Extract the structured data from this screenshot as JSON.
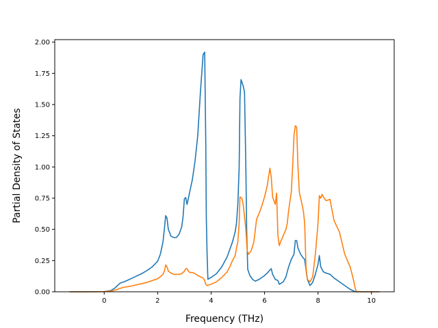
{
  "chart_data": {
    "type": "line",
    "xlabel": "Frequency (THz)",
    "ylabel": "Partial Density of States",
    "xlim": [
      -1.85,
      10.85
    ],
    "ylim": [
      0,
      2.02
    ],
    "xticks": [
      0,
      2,
      4,
      6,
      8,
      10
    ],
    "yticks": [
      0.0,
      0.25,
      0.5,
      0.75,
      1.0,
      1.25,
      1.5,
      1.75,
      2.0
    ],
    "xtick_labels": [
      "0",
      "2",
      "4",
      "6",
      "8",
      "10"
    ],
    "ytick_labels": [
      "0.00",
      "0.25",
      "0.50",
      "0.75",
      "1.00",
      "1.25",
      "1.50",
      "1.75",
      "2.00"
    ],
    "grid": false,
    "series": [
      {
        "color": "#1f77b4",
        "points": [
          [
            -1.3,
            0
          ],
          [
            -0.5,
            0
          ],
          [
            0,
            0.002
          ],
          [
            0.25,
            0.01
          ],
          [
            0.4,
            0.03
          ],
          [
            0.6,
            0.07
          ],
          [
            0.8,
            0.085
          ],
          [
            1.0,
            0.105
          ],
          [
            1.2,
            0.125
          ],
          [
            1.4,
            0.145
          ],
          [
            1.6,
            0.17
          ],
          [
            1.8,
            0.2
          ],
          [
            2.0,
            0.245
          ],
          [
            2.1,
            0.3
          ],
          [
            2.2,
            0.4
          ],
          [
            2.25,
            0.5
          ],
          [
            2.3,
            0.61
          ],
          [
            2.35,
            0.59
          ],
          [
            2.4,
            0.5
          ],
          [
            2.5,
            0.445
          ],
          [
            2.6,
            0.435
          ],
          [
            2.7,
            0.435
          ],
          [
            2.8,
            0.46
          ],
          [
            2.9,
            0.52
          ],
          [
            2.95,
            0.6
          ],
          [
            3.0,
            0.745
          ],
          [
            3.05,
            0.755
          ],
          [
            3.1,
            0.7
          ],
          [
            3.2,
            0.8
          ],
          [
            3.3,
            0.9
          ],
          [
            3.4,
            1.05
          ],
          [
            3.5,
            1.25
          ],
          [
            3.6,
            1.6
          ],
          [
            3.7,
            1.9
          ],
          [
            3.76,
            1.92
          ],
          [
            3.8,
            1.2
          ],
          [
            3.82,
            0.6
          ],
          [
            3.85,
            0.3
          ],
          [
            3.88,
            0.1
          ],
          [
            4.0,
            0.115
          ],
          [
            4.2,
            0.145
          ],
          [
            4.4,
            0.2
          ],
          [
            4.6,
            0.28
          ],
          [
            4.7,
            0.34
          ],
          [
            4.8,
            0.4
          ],
          [
            4.9,
            0.48
          ],
          [
            4.95,
            0.55
          ],
          [
            5.0,
            0.7
          ],
          [
            5.05,
            1.0
          ],
          [
            5.08,
            1.55
          ],
          [
            5.12,
            1.7
          ],
          [
            5.2,
            1.65
          ],
          [
            5.25,
            1.6
          ],
          [
            5.3,
            1.0
          ],
          [
            5.33,
            0.5
          ],
          [
            5.37,
            0.18
          ],
          [
            5.45,
            0.13
          ],
          [
            5.55,
            0.1
          ],
          [
            5.65,
            0.085
          ],
          [
            5.8,
            0.1
          ],
          [
            6.0,
            0.13
          ],
          [
            6.1,
            0.15
          ],
          [
            6.2,
            0.175
          ],
          [
            6.25,
            0.185
          ],
          [
            6.3,
            0.14
          ],
          [
            6.4,
            0.1
          ],
          [
            6.5,
            0.09
          ],
          [
            6.55,
            0.06
          ],
          [
            6.7,
            0.08
          ],
          [
            6.8,
            0.12
          ],
          [
            6.9,
            0.2
          ],
          [
            7.0,
            0.26
          ],
          [
            7.1,
            0.3
          ],
          [
            7.15,
            0.41
          ],
          [
            7.2,
            0.41
          ],
          [
            7.25,
            0.35
          ],
          [
            7.35,
            0.3
          ],
          [
            7.45,
            0.27
          ],
          [
            7.5,
            0.26
          ],
          [
            7.6,
            0.1
          ],
          [
            7.7,
            0.05
          ],
          [
            7.8,
            0.075
          ],
          [
            7.9,
            0.14
          ],
          [
            8.0,
            0.22
          ],
          [
            8.05,
            0.29
          ],
          [
            8.1,
            0.2
          ],
          [
            8.2,
            0.16
          ],
          [
            8.3,
            0.15
          ],
          [
            8.45,
            0.14
          ],
          [
            8.6,
            0.11
          ],
          [
            8.8,
            0.08
          ],
          [
            9.0,
            0.05
          ],
          [
            9.2,
            0.02
          ],
          [
            9.4,
            0
          ],
          [
            10.3,
            0
          ]
        ]
      },
      {
        "color": "#ff7f0e",
        "points": [
          [
            -1.3,
            0
          ],
          [
            -0.5,
            0
          ],
          [
            0,
            0.001
          ],
          [
            0.3,
            0.007
          ],
          [
            0.5,
            0.02
          ],
          [
            0.7,
            0.035
          ],
          [
            1.0,
            0.045
          ],
          [
            1.3,
            0.06
          ],
          [
            1.6,
            0.075
          ],
          [
            1.8,
            0.09
          ],
          [
            2.0,
            0.105
          ],
          [
            2.1,
            0.12
          ],
          [
            2.2,
            0.14
          ],
          [
            2.25,
            0.165
          ],
          [
            2.3,
            0.215
          ],
          [
            2.35,
            0.2
          ],
          [
            2.4,
            0.165
          ],
          [
            2.5,
            0.15
          ],
          [
            2.6,
            0.14
          ],
          [
            2.8,
            0.14
          ],
          [
            2.9,
            0.145
          ],
          [
            3.0,
            0.165
          ],
          [
            3.05,
            0.185
          ],
          [
            3.1,
            0.185
          ],
          [
            3.15,
            0.165
          ],
          [
            3.2,
            0.155
          ],
          [
            3.3,
            0.155
          ],
          [
            3.4,
            0.145
          ],
          [
            3.5,
            0.13
          ],
          [
            3.6,
            0.12
          ],
          [
            3.7,
            0.11
          ],
          [
            3.75,
            0.095
          ],
          [
            3.8,
            0.06
          ],
          [
            3.85,
            0.05
          ],
          [
            4.0,
            0.06
          ],
          [
            4.2,
            0.08
          ],
          [
            4.4,
            0.115
          ],
          [
            4.6,
            0.16
          ],
          [
            4.7,
            0.2
          ],
          [
            4.8,
            0.25
          ],
          [
            4.9,
            0.29
          ],
          [
            4.95,
            0.35
          ],
          [
            5.0,
            0.4
          ],
          [
            5.05,
            0.55
          ],
          [
            5.08,
            0.76
          ],
          [
            5.15,
            0.75
          ],
          [
            5.2,
            0.7
          ],
          [
            5.3,
            0.5
          ],
          [
            5.35,
            0.33
          ],
          [
            5.4,
            0.3
          ],
          [
            5.5,
            0.33
          ],
          [
            5.6,
            0.4
          ],
          [
            5.7,
            0.58
          ],
          [
            5.8,
            0.63
          ],
          [
            5.9,
            0.69
          ],
          [
            6.0,
            0.76
          ],
          [
            6.1,
            0.85
          ],
          [
            6.2,
            0.99
          ],
          [
            6.25,
            0.92
          ],
          [
            6.3,
            0.76
          ],
          [
            6.4,
            0.7
          ],
          [
            6.45,
            0.79
          ],
          [
            6.5,
            0.45
          ],
          [
            6.55,
            0.37
          ],
          [
            6.6,
            0.4
          ],
          [
            6.7,
            0.45
          ],
          [
            6.8,
            0.5
          ],
          [
            6.85,
            0.55
          ],
          [
            6.9,
            0.65
          ],
          [
            7.0,
            0.8
          ],
          [
            7.05,
            1.0
          ],
          [
            7.1,
            1.25
          ],
          [
            7.15,
            1.33
          ],
          [
            7.2,
            1.32
          ],
          [
            7.25,
            1.0
          ],
          [
            7.3,
            0.8
          ],
          [
            7.4,
            0.7
          ],
          [
            7.45,
            0.65
          ],
          [
            7.5,
            0.55
          ],
          [
            7.55,
            0.2
          ],
          [
            7.6,
            0.1
          ],
          [
            7.7,
            0.08
          ],
          [
            7.8,
            0.12
          ],
          [
            7.9,
            0.3
          ],
          [
            8.0,
            0.55
          ],
          [
            8.05,
            0.77
          ],
          [
            8.1,
            0.75
          ],
          [
            8.15,
            0.78
          ],
          [
            8.2,
            0.76
          ],
          [
            8.3,
            0.73
          ],
          [
            8.45,
            0.74
          ],
          [
            8.5,
            0.68
          ],
          [
            8.6,
            0.57
          ],
          [
            8.8,
            0.48
          ],
          [
            9.0,
            0.3
          ],
          [
            9.2,
            0.2
          ],
          [
            9.3,
            0.12
          ],
          [
            9.4,
            0.02
          ],
          [
            9.45,
            0
          ],
          [
            10.3,
            0
          ]
        ]
      }
    ]
  }
}
